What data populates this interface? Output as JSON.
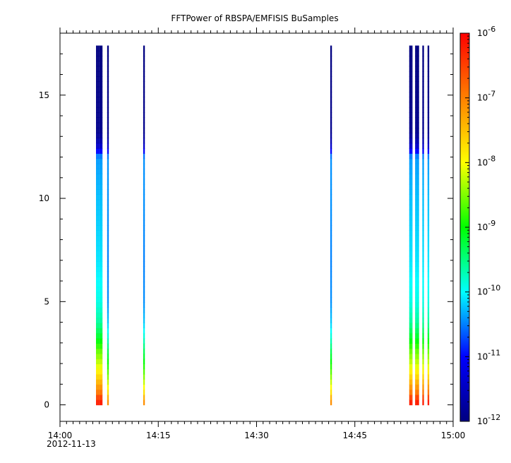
{
  "chart_data": {
    "type": "heatmap",
    "title": "FFTPower of RBSPA/EMFISIS  BuSamples",
    "xlabel": "",
    "ylabel": "",
    "x_range_minutes": [
      0,
      60
    ],
    "x_ticks": [
      {
        "minute": 0,
        "label": "14:00"
      },
      {
        "minute": 15,
        "label": "14:15"
      },
      {
        "minute": 30,
        "label": "14:30"
      },
      {
        "minute": 45,
        "label": "14:45"
      },
      {
        "minute": 60,
        "label": "15:00"
      }
    ],
    "x_date_label": "2012-11-13",
    "ylim": [
      -0.8,
      18.0
    ],
    "y_ticks": [
      0,
      5,
      10,
      15
    ],
    "colorbar": {
      "scale": "log",
      "range": [
        1e-12,
        1e-06
      ],
      "ticks": [
        {
          "exp": -12,
          "base": "10",
          "sup": "-12"
        },
        {
          "exp": -11,
          "base": "10",
          "sup": "-11"
        },
        {
          "exp": -10,
          "base": "10",
          "sup": "-10"
        },
        {
          "exp": -9,
          "base": "10",
          "sup": "-9"
        },
        {
          "exp": -8,
          "base": "10",
          "sup": "-8"
        },
        {
          "exp": -7,
          "base": "10",
          "sup": "-7"
        },
        {
          "exp": -6,
          "base": "10",
          "sup": "-6"
        }
      ],
      "colors": [
        "#000080",
        "#0000ff",
        "#00ffff",
        "#00ff00",
        "#ffff00",
        "#ff8000",
        "#ff0000"
      ]
    },
    "bursts": [
      {
        "start": 5.5,
        "end": 5.75,
        "strong": true
      },
      {
        "start": 5.75,
        "end": 6.0,
        "strong": true
      },
      {
        "start": 6.0,
        "end": 6.25,
        "strong": true
      },
      {
        "start": 6.25,
        "end": 6.45,
        "strong": true
      },
      {
        "start": 7.2,
        "end": 7.45,
        "strong": false
      },
      {
        "start": 12.7,
        "end": 12.95,
        "strong": false
      },
      {
        "start": 41.25,
        "end": 41.5,
        "strong": false
      },
      {
        "start": 53.3,
        "end": 53.55,
        "strong": true
      },
      {
        "start": 53.55,
        "end": 53.8,
        "strong": true
      },
      {
        "start": 54.2,
        "end": 54.5,
        "strong": true
      },
      {
        "start": 54.5,
        "end": 54.8,
        "strong": true
      },
      {
        "start": 55.3,
        "end": 55.55,
        "strong": true
      },
      {
        "start": 56.1,
        "end": 56.35,
        "strong": true
      }
    ],
    "burst_y_top": 17.4,
    "spectrum_profile": [
      {
        "f": 0.0,
        "log_power": -6.1
      },
      {
        "f": 0.3,
        "log_power": -6.4
      },
      {
        "f": 0.6,
        "log_power": -6.9
      },
      {
        "f": 1.0,
        "log_power": -7.3
      },
      {
        "f": 1.5,
        "log_power": -7.8
      },
      {
        "f": 2.0,
        "log_power": -8.2
      },
      {
        "f": 2.6,
        "log_power": -8.6
      },
      {
        "f": 3.2,
        "log_power": -9.1
      },
      {
        "f": 4.0,
        "log_power": -9.6
      },
      {
        "f": 5.0,
        "log_power": -9.9
      },
      {
        "f": 7.0,
        "log_power": -10.1
      },
      {
        "f": 10.0,
        "log_power": -10.25
      },
      {
        "f": 12.0,
        "log_power": -10.4
      },
      {
        "f": 12.3,
        "log_power": -11.0
      },
      {
        "f": 12.6,
        "log_power": -11.5
      },
      {
        "f": 13.2,
        "log_power": -11.9
      },
      {
        "f": 17.4,
        "log_power": -12.0
      }
    ],
    "weak_burst_offset": -0.9
  }
}
